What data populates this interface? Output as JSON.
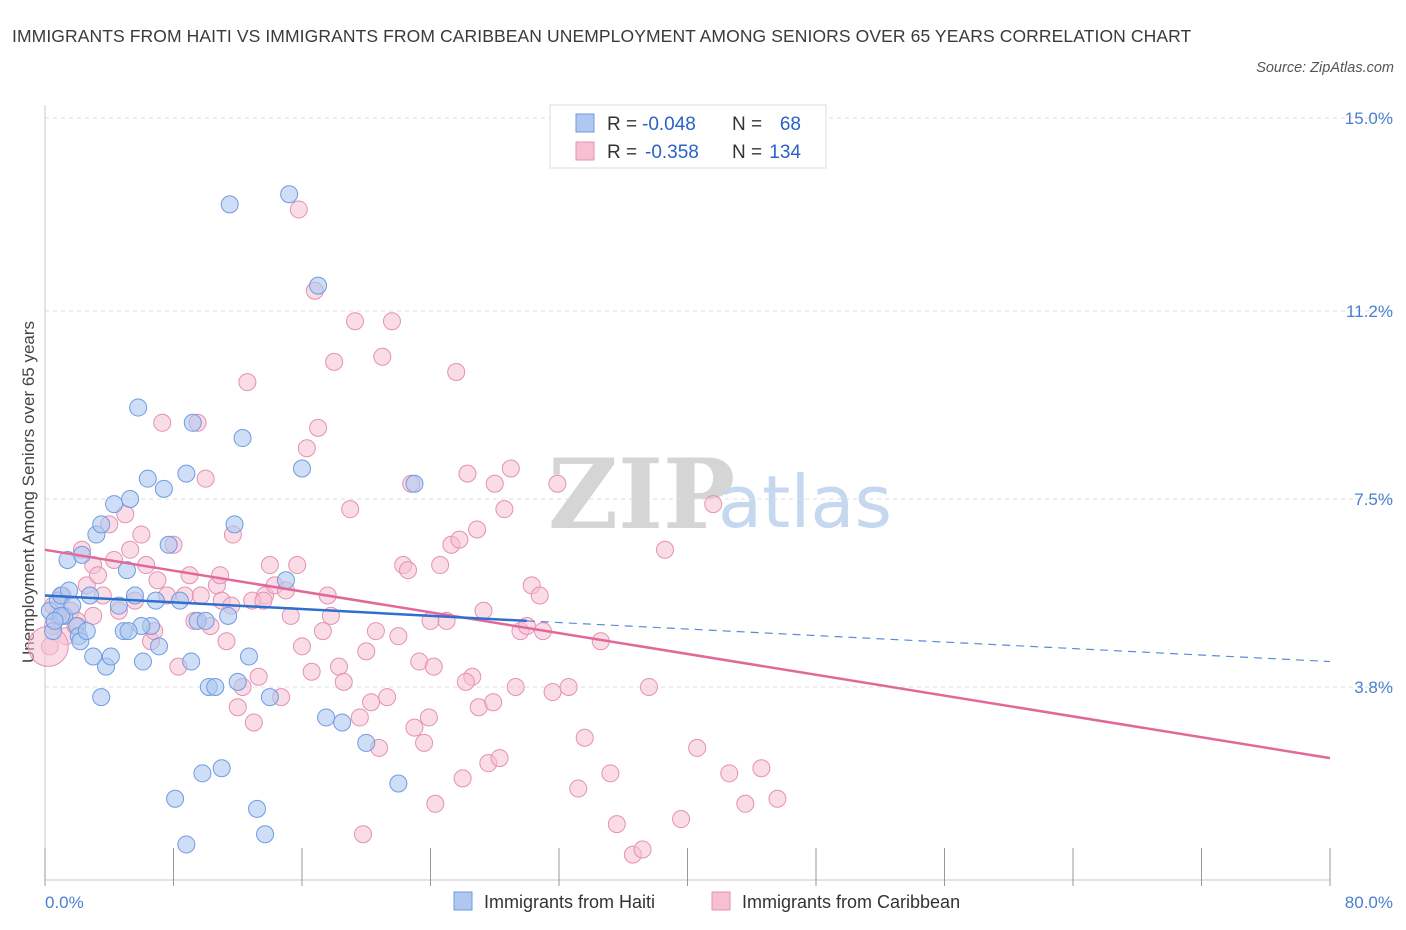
{
  "title": "IMMIGRANTS FROM HAITI VS IMMIGRANTS FROM CARIBBEAN UNEMPLOYMENT AMONG SENIORS OVER 65 YEARS CORRELATION CHART",
  "source": "Source: ZipAtlas.com",
  "watermark": {
    "zip": "ZIP",
    "atlas": "atlas"
  },
  "colors": {
    "haiti_fill": "#aec8f0",
    "haiti_stroke": "#6f9be0",
    "haiti_line": "#2f6fce",
    "carib_fill": "#f6bfd2",
    "carib_stroke": "#e591b0",
    "carib_line": "#e0699a",
    "grid": "#dddddd",
    "tick_text": "#4a7fd0"
  },
  "chart_data": {
    "type": "scatter",
    "title": "IMMIGRANTS FROM HAITI VS IMMIGRANTS FROM CARIBBEAN UNEMPLOYMENT AMONG SENIORS OVER 65 YEARS CORRELATION CHART",
    "xlabel": "",
    "ylabel": "Unemployment Among Seniors over 65 years",
    "xlim": [
      0,
      80
    ],
    "ylim": [
      0,
      15.0
    ],
    "x_tick_labels": [
      "0.0%",
      "80.0%"
    ],
    "y_ticks": [
      3.8,
      7.5,
      11.2,
      15.0
    ],
    "y_tick_labels": [
      "3.8%",
      "7.5%",
      "11.2%",
      "15.0%"
    ],
    "grid": true,
    "legend": {
      "entries": [
        {
          "r_label": "R =",
          "r_value": "-0.048",
          "n_label": "N =",
          "n_value": "68"
        },
        {
          "r_label": "R =",
          "r_value": "-0.358",
          "n_label": "N =",
          "n_value": "134"
        }
      ],
      "position": "top-center"
    },
    "bottom_legend": [
      "Immigrants from Haiti",
      "Immigrants from Caribbean"
    ],
    "series": [
      {
        "name": "Immigrants from Haiti",
        "trend": {
          "x": [
            0,
            30
          ],
          "y": [
            5.6,
            5.1
          ]
        },
        "trend_dashed": {
          "x": [
            30,
            80
          ],
          "y": [
            5.1,
            4.3
          ]
        },
        "points": [
          [
            0.3,
            5.3
          ],
          [
            0.5,
            4.9
          ],
          [
            0.8,
            5.5
          ],
          [
            1.0,
            5.6
          ],
          [
            1.2,
            5.2
          ],
          [
            1.4,
            6.3
          ],
          [
            1.5,
            5.7
          ],
          [
            1.7,
            5.4
          ],
          [
            2.0,
            5.0
          ],
          [
            2.1,
            4.8
          ],
          [
            2.2,
            4.7
          ],
          [
            2.3,
            6.4
          ],
          [
            2.6,
            4.9
          ],
          [
            2.8,
            5.6
          ],
          [
            3.0,
            4.4
          ],
          [
            3.2,
            6.8
          ],
          [
            3.5,
            7.0
          ],
          [
            3.8,
            4.2
          ],
          [
            4.1,
            4.4
          ],
          [
            4.3,
            7.4
          ],
          [
            4.6,
            5.4
          ],
          [
            4.9,
            4.9
          ],
          [
            5.1,
            6.1
          ],
          [
            5.3,
            7.5
          ],
          [
            5.6,
            5.6
          ],
          [
            5.8,
            9.3
          ],
          [
            6.1,
            4.3
          ],
          [
            6.4,
            7.9
          ],
          [
            6.6,
            5.0
          ],
          [
            6.9,
            5.5
          ],
          [
            7.1,
            4.6
          ],
          [
            7.4,
            7.7
          ],
          [
            7.7,
            6.6
          ],
          [
            8.1,
            1.6
          ],
          [
            8.4,
            5.5
          ],
          [
            8.8,
            8.0
          ],
          [
            9.1,
            4.3
          ],
          [
            9.5,
            5.1
          ],
          [
            9.8,
            2.1
          ],
          [
            10.2,
            3.8
          ],
          [
            10.6,
            3.8
          ],
          [
            11.0,
            2.2
          ],
          [
            11.4,
            5.2
          ],
          [
            11.8,
            7.0
          ],
          [
            12.3,
            8.7
          ],
          [
            12.7,
            4.4
          ],
          [
            13.2,
            1.4
          ],
          [
            14.0,
            3.6
          ],
          [
            15.0,
            5.9
          ],
          [
            16.0,
            8.1
          ],
          [
            17.0,
            11.7
          ],
          [
            17.5,
            3.2
          ],
          [
            18.5,
            3.1
          ],
          [
            20.0,
            2.7
          ],
          [
            22.0,
            1.9
          ],
          [
            23.0,
            7.8
          ],
          [
            9.2,
            9.0
          ],
          [
            11.5,
            13.3
          ],
          [
            15.2,
            13.5
          ],
          [
            13.7,
            0.9
          ],
          [
            8.8,
            0.7
          ],
          [
            1.0,
            5.2
          ],
          [
            0.6,
            5.1
          ],
          [
            3.5,
            3.6
          ],
          [
            6.0,
            5.0
          ],
          [
            10.0,
            5.1
          ],
          [
            12.0,
            3.9
          ],
          [
            5.2,
            4.9
          ]
        ]
      },
      {
        "name": "Immigrants from Caribbean",
        "trend": {
          "x": [
            0,
            80
          ],
          "y": [
            6.5,
            2.4
          ]
        },
        "points": [
          [
            0.3,
            4.6
          ],
          [
            0.5,
            5.0
          ],
          [
            0.8,
            5.2
          ],
          [
            1.1,
            5.6
          ],
          [
            1.3,
            4.8
          ],
          [
            1.6,
            5.3
          ],
          [
            2.0,
            5.1
          ],
          [
            2.3,
            6.5
          ],
          [
            2.6,
            5.8
          ],
          [
            3.0,
            6.2
          ],
          [
            3.3,
            6.0
          ],
          [
            3.6,
            5.6
          ],
          [
            4.0,
            7.0
          ],
          [
            4.3,
            6.3
          ],
          [
            4.6,
            5.3
          ],
          [
            5.0,
            7.2
          ],
          [
            5.3,
            6.5
          ],
          [
            5.6,
            5.5
          ],
          [
            6.0,
            6.8
          ],
          [
            6.3,
            6.2
          ],
          [
            6.6,
            4.7
          ],
          [
            7.0,
            5.9
          ],
          [
            7.3,
            9.0
          ],
          [
            7.6,
            5.6
          ],
          [
            8.0,
            6.6
          ],
          [
            8.3,
            4.2
          ],
          [
            8.7,
            5.6
          ],
          [
            9.0,
            6.0
          ],
          [
            9.3,
            5.1
          ],
          [
            9.7,
            5.6
          ],
          [
            10.0,
            7.9
          ],
          [
            10.3,
            5.0
          ],
          [
            10.7,
            5.8
          ],
          [
            11.0,
            5.5
          ],
          [
            11.3,
            4.7
          ],
          [
            11.7,
            6.8
          ],
          [
            12.0,
            3.4
          ],
          [
            12.3,
            3.8
          ],
          [
            12.6,
            9.8
          ],
          [
            13.0,
            3.1
          ],
          [
            13.3,
            4.0
          ],
          [
            13.7,
            5.6
          ],
          [
            14.0,
            6.2
          ],
          [
            14.3,
            5.8
          ],
          [
            14.7,
            3.6
          ],
          [
            15.0,
            5.7
          ],
          [
            15.3,
            5.2
          ],
          [
            15.7,
            6.2
          ],
          [
            16.0,
            4.6
          ],
          [
            16.3,
            8.5
          ],
          [
            16.6,
            4.1
          ],
          [
            17.0,
            8.9
          ],
          [
            17.3,
            4.9
          ],
          [
            17.6,
            5.6
          ],
          [
            18.0,
            10.2
          ],
          [
            18.3,
            4.2
          ],
          [
            18.6,
            3.9
          ],
          [
            19.0,
            7.3
          ],
          [
            19.3,
            11.0
          ],
          [
            19.6,
            3.2
          ],
          [
            20.0,
            4.5
          ],
          [
            20.3,
            3.5
          ],
          [
            20.6,
            4.9
          ],
          [
            21.0,
            10.3
          ],
          [
            21.3,
            3.6
          ],
          [
            21.6,
            11.0
          ],
          [
            22.0,
            4.8
          ],
          [
            22.3,
            6.2
          ],
          [
            22.6,
            6.1
          ],
          [
            23.0,
            3.0
          ],
          [
            23.3,
            4.3
          ],
          [
            23.6,
            2.7
          ],
          [
            24.0,
            5.1
          ],
          [
            24.3,
            1.5
          ],
          [
            24.6,
            6.2
          ],
          [
            25.0,
            5.1
          ],
          [
            25.3,
            6.6
          ],
          [
            25.6,
            10.0
          ],
          [
            26.0,
            2.0
          ],
          [
            26.3,
            8.0
          ],
          [
            26.6,
            4.0
          ],
          [
            27.0,
            3.4
          ],
          [
            27.3,
            5.3
          ],
          [
            27.6,
            2.3
          ],
          [
            28.0,
            7.8
          ],
          [
            28.3,
            2.4
          ],
          [
            28.6,
            7.3
          ],
          [
            29.0,
            8.1
          ],
          [
            29.3,
            3.8
          ],
          [
            29.6,
            4.9
          ],
          [
            30.0,
            5.0
          ],
          [
            30.3,
            5.8
          ],
          [
            31.0,
            4.9
          ],
          [
            31.6,
            3.7
          ],
          [
            32.6,
            3.8
          ],
          [
            33.6,
            2.8
          ],
          [
            34.6,
            4.7
          ],
          [
            35.6,
            1.1
          ],
          [
            36.6,
            0.5
          ],
          [
            37.6,
            3.8
          ],
          [
            38.6,
            6.5
          ],
          [
            39.6,
            1.2
          ],
          [
            40.6,
            2.6
          ],
          [
            41.6,
            7.4
          ],
          [
            42.6,
            2.1
          ],
          [
            43.6,
            1.5
          ],
          [
            44.6,
            2.2
          ],
          [
            45.6,
            1.6
          ],
          [
            9.5,
            9.0
          ],
          [
            16.8,
            11.6
          ],
          [
            15.8,
            13.2
          ],
          [
            22.8,
            7.8
          ],
          [
            26.9,
            6.9
          ],
          [
            19.8,
            0.9
          ],
          [
            25.8,
            6.7
          ],
          [
            31.9,
            7.8
          ],
          [
            10.9,
            6.0
          ],
          [
            12.9,
            5.5
          ],
          [
            13.6,
            5.5
          ],
          [
            0.5,
            5.4
          ],
          [
            1.9,
            5.0
          ],
          [
            3.0,
            5.2
          ],
          [
            6.8,
            4.9
          ],
          [
            11.6,
            5.4
          ],
          [
            17.8,
            5.2
          ],
          [
            20.8,
            2.6
          ],
          [
            23.9,
            3.2
          ],
          [
            27.9,
            3.5
          ],
          [
            33.2,
            1.8
          ],
          [
            37.2,
            0.6
          ],
          [
            24.2,
            4.2
          ],
          [
            26.2,
            3.9
          ],
          [
            30.8,
            5.6
          ],
          [
            35.2,
            2.1
          ]
        ]
      }
    ]
  }
}
